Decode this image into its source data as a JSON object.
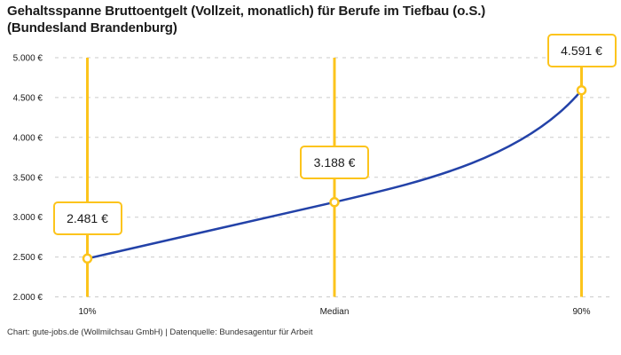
{
  "title": "Gehaltsspanne Bruttoentgelt (Vollzeit, monatlich) für Berufe im Tiefbau (o.S.) (Bundesland Brandenburg)",
  "footer": "Chart: gute-jobs.de (Wollmilchsau GmbH) | Datenquelle: Bundesagentur für Arbeit",
  "chart_data": {
    "type": "line",
    "categories": [
      "10%",
      "Median",
      "90%"
    ],
    "values": [
      2481,
      3188,
      4591
    ],
    "point_labels": [
      "2.481 €",
      "3.188 €",
      "4.591 €"
    ],
    "y_ticks": [
      {
        "value": 5000,
        "label": "5.000 €"
      },
      {
        "value": 4500,
        "label": "4.500 €"
      },
      {
        "value": 4000,
        "label": "4.000 €"
      },
      {
        "value": 3500,
        "label": "3.500 €"
      },
      {
        "value": 3000,
        "label": "3.000 €"
      },
      {
        "value": 2500,
        "label": "2.500 €"
      },
      {
        "value": 2000,
        "label": "2.000 €"
      }
    ],
    "ylim": [
      2000,
      5000
    ],
    "xlabel": "",
    "ylabel": "",
    "grid": "horizontal-dashed",
    "legend": "none",
    "colors": {
      "line": "#2342A8",
      "accent": "#FCC41C",
      "grid": "#CBCBCB",
      "axis_text": "#1A1A1A",
      "footer_text": "#333333",
      "marker_fill": "#FFFFFF"
    }
  }
}
